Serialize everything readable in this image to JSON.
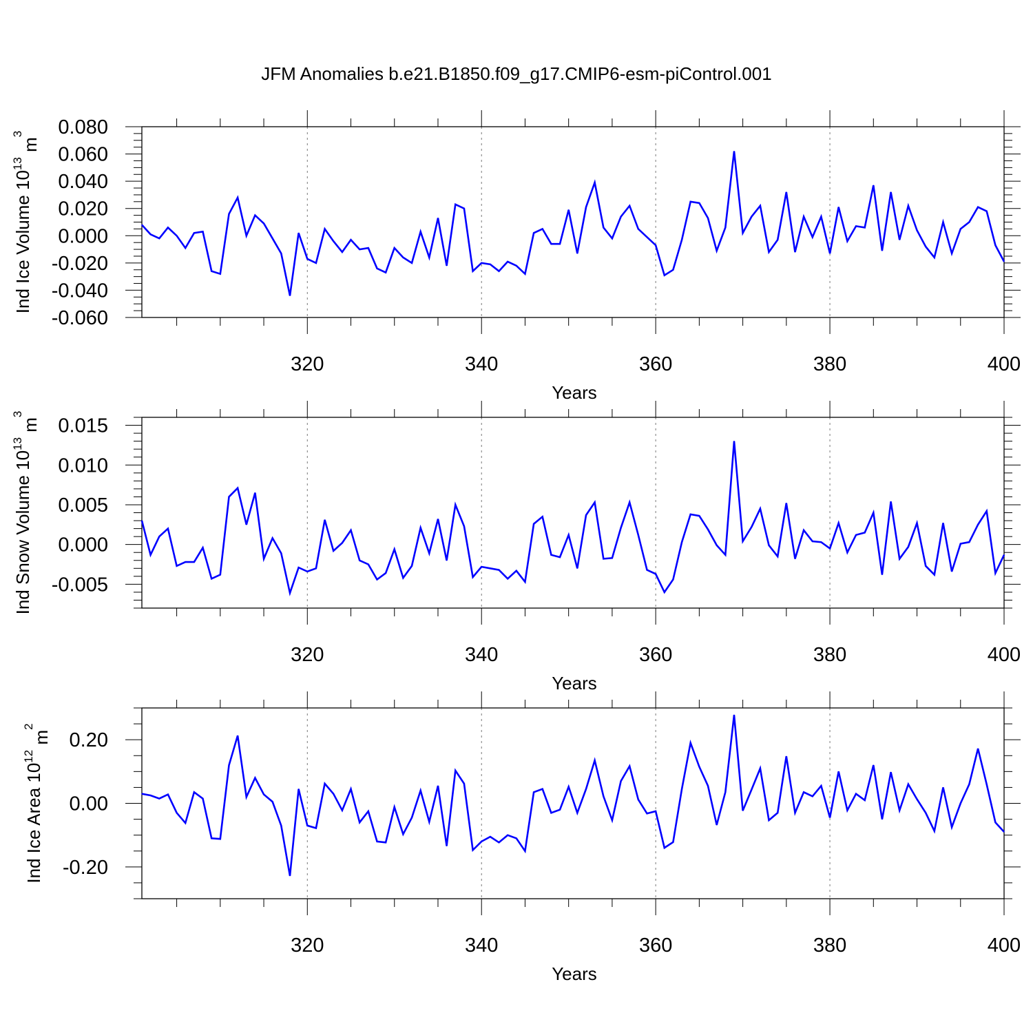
{
  "title": "JFM Anomalies b.e21.B1850.f09_g17.CMIP6-esm-piControl.001",
  "line_color": "#0000ff",
  "chart_data": [
    {
      "type": "line",
      "title": "JFM Anomalies b.e21.B1850.f09_g17.CMIP6-esm-piControl.001",
      "ylabel_main": "Ind Ice Volume 10",
      "ylabel_exp": "13",
      "ylabel_unit": " m",
      "ylabel_unit_exp": "3",
      "xlabel": "Years",
      "xlim": [
        301,
        400
      ],
      "ylim": [
        -0.06,
        0.08
      ],
      "yticks": [
        -0.06,
        -0.04,
        -0.02,
        0.0,
        0.02,
        0.04,
        0.06,
        0.08
      ],
      "ytick_labels": [
        "-0.060",
        "-0.040",
        "-0.020",
        "0.000",
        "0.020",
        "0.040",
        "0.060",
        "0.080"
      ],
      "yminor_step": 0.005,
      "xticks": [
        320,
        340,
        360,
        380,
        400
      ],
      "xtick_labels": [
        "320",
        "340",
        "360",
        "380",
        "400"
      ],
      "vlines": [
        320,
        340,
        360,
        380
      ],
      "series": [
        {
          "name": "Ind Ice Volume",
          "x_start": 301,
          "values": [
            0.008,
            0.001,
            -0.002,
            0.006,
            0.0,
            -0.009,
            0.002,
            0.003,
            -0.026,
            -0.028,
            0.016,
            0.028,
            0.0,
            0.015,
            0.009,
            -0.002,
            -0.013,
            -0.044,
            0.002,
            -0.017,
            -0.02,
            0.005,
            -0.004,
            -0.012,
            -0.003,
            -0.01,
            -0.009,
            -0.024,
            -0.027,
            -0.009,
            -0.016,
            -0.02,
            0.003,
            -0.016,
            0.013,
            -0.022,
            0.023,
            0.02,
            -0.026,
            -0.02,
            -0.021,
            -0.026,
            -0.019,
            -0.022,
            -0.028,
            0.002,
            0.005,
            -0.006,
            -0.006,
            0.019,
            -0.013,
            0.021,
            0.039,
            0.006,
            -0.002,
            0.014,
            0.022,
            0.005,
            -0.001,
            -0.007,
            -0.029,
            -0.025,
            -0.003,
            0.025,
            0.024,
            0.013,
            -0.011,
            0.006,
            0.062,
            0.002,
            0.014,
            0.022,
            -0.012,
            -0.003,
            0.032,
            -0.012,
            0.014,
            -0.001,
            0.014,
            -0.013,
            0.021,
            -0.004,
            0.007,
            0.006,
            0.037,
            -0.011,
            0.032,
            -0.003,
            0.022,
            0.004,
            -0.008,
            -0.016,
            0.01,
            -0.013,
            0.005,
            0.01,
            0.021,
            0.018,
            -0.007,
            -0.019
          ]
        }
      ]
    },
    {
      "type": "line",
      "ylabel_main": "Ind Snow Volume 10",
      "ylabel_exp": "13",
      "ylabel_unit": " m",
      "ylabel_unit_exp": "3",
      "xlabel": "Years",
      "xlim": [
        301,
        400
      ],
      "ylim": [
        -0.008,
        0.016
      ],
      "yticks": [
        -0.005,
        0.0,
        0.005,
        0.01,
        0.015
      ],
      "ytick_labels": [
        "-0.005",
        "0.000",
        "0.005",
        "0.010",
        "0.015"
      ],
      "yminor_step": 0.001,
      "xticks": [
        320,
        340,
        360,
        380,
        400
      ],
      "xtick_labels": [
        "320",
        "340",
        "360",
        "380",
        "400"
      ],
      "vlines": [
        320,
        340,
        360,
        380
      ],
      "series": [
        {
          "name": "Ind Snow Volume",
          "x_start": 301,
          "values": [
            0.003,
            -0.0013,
            0.001,
            0.002,
            -0.0027,
            -0.0022,
            -0.0022,
            -0.0004,
            -0.0043,
            -0.0038,
            0.006,
            0.0071,
            0.0025,
            0.0065,
            -0.0018,
            0.0008,
            -0.0011,
            -0.0061,
            -0.0029,
            -0.0034,
            -0.003,
            0.0031,
            -0.0008,
            0.0002,
            0.0018,
            -0.002,
            -0.0025,
            -0.0044,
            -0.0036,
            -0.0006,
            -0.0042,
            -0.0027,
            0.0021,
            -0.0011,
            0.0032,
            -0.002,
            0.005,
            0.0023,
            -0.0041,
            -0.0028,
            -0.003,
            -0.0032,
            -0.0043,
            -0.0033,
            -0.0047,
            0.0026,
            0.0035,
            -0.0013,
            -0.0016,
            0.0012,
            -0.003,
            0.0037,
            0.0053,
            -0.0018,
            -0.0017,
            0.0021,
            0.0053,
            0.0012,
            -0.0032,
            -0.0037,
            -0.006,
            -0.0044,
            0.0003,
            0.0038,
            0.0036,
            0.0019,
            -0.0001,
            -0.0013,
            0.013,
            0.0004,
            0.0022,
            0.0045,
            -0.0001,
            -0.0015,
            0.0052,
            -0.0018,
            0.0018,
            0.0004,
            0.0003,
            -0.0005,
            0.0027,
            -0.001,
            0.0012,
            0.0015,
            0.004,
            -0.0038,
            0.0054,
            -0.0018,
            -0.0003,
            0.0027,
            -0.0027,
            -0.0038,
            0.0027,
            -0.0034,
            0.0001,
            0.0003,
            0.0025,
            0.0042,
            -0.0036,
            -0.0013
          ]
        }
      ]
    },
    {
      "type": "line",
      "ylabel_main": "Ind Ice Area 10",
      "ylabel_exp": "12",
      "ylabel_unit": " m",
      "ylabel_unit_exp": "2",
      "xlabel": "Years",
      "xlim": [
        301,
        400
      ],
      "ylim": [
        -0.3,
        0.3
      ],
      "yticks": [
        -0.2,
        0.0,
        0.2
      ],
      "ytick_labels": [
        "-0.20",
        "0.00",
        "0.20"
      ],
      "yminor_step": 0.05,
      "xticks": [
        320,
        340,
        360,
        380,
        400
      ],
      "xtick_labels": [
        "320",
        "340",
        "360",
        "380",
        "400"
      ],
      "vlines": [
        320,
        340,
        360,
        380
      ],
      "series": [
        {
          "name": "Ind Ice Area",
          "x_start": 301,
          "values": [
            0.03,
            0.025,
            0.015,
            0.028,
            -0.03,
            -0.062,
            0.035,
            0.015,
            -0.11,
            -0.112,
            0.12,
            0.213,
            0.02,
            0.08,
            0.028,
            0.005,
            -0.07,
            -0.228,
            0.045,
            -0.07,
            -0.078,
            0.062,
            0.03,
            -0.022,
            0.045,
            -0.06,
            -0.025,
            -0.12,
            -0.123,
            -0.012,
            -0.097,
            -0.045,
            0.04,
            -0.058,
            0.055,
            -0.134,
            0.103,
            0.062,
            -0.147,
            -0.12,
            -0.105,
            -0.123,
            -0.1,
            -0.11,
            -0.15,
            0.035,
            0.045,
            -0.03,
            -0.02,
            0.052,
            -0.03,
            0.045,
            0.135,
            0.022,
            -0.053,
            0.07,
            0.117,
            0.012,
            -0.032,
            -0.025,
            -0.14,
            -0.122,
            0.045,
            0.19,
            0.115,
            0.055,
            -0.068,
            0.035,
            0.278,
            -0.023,
            0.043,
            0.11,
            -0.053,
            -0.03,
            0.148,
            -0.03,
            0.035,
            0.022,
            0.055,
            -0.045,
            0.1,
            -0.022,
            0.03,
            0.01,
            0.12,
            -0.05,
            0.098,
            -0.022,
            0.06,
            0.013,
            -0.03,
            -0.087,
            0.05,
            -0.075,
            0.0,
            0.06,
            0.172,
            0.06,
            -0.06,
            -0.09
          ]
        }
      ]
    }
  ]
}
